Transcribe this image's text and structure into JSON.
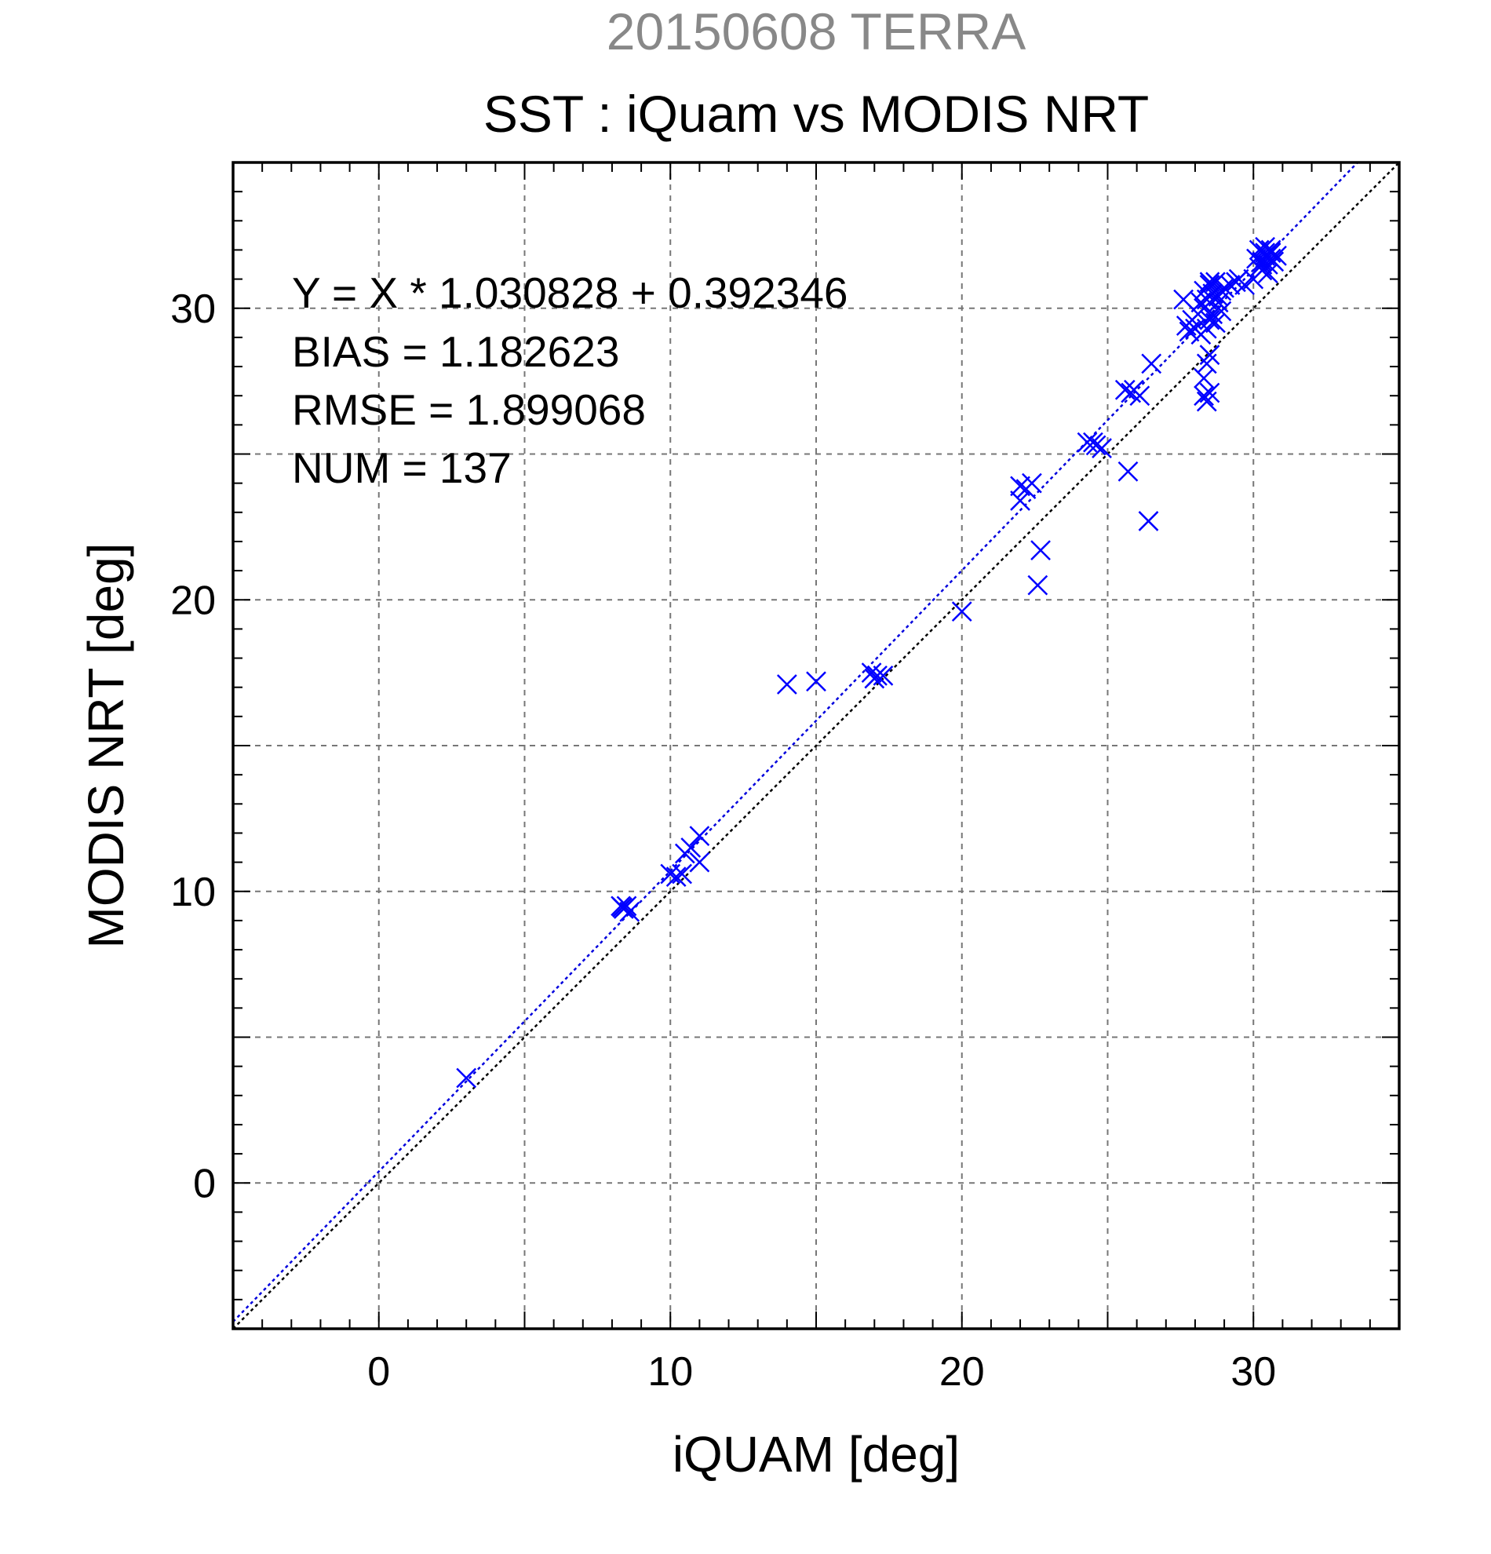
{
  "chart_data": {
    "type": "scatter",
    "title": "SST : iQuam vs MODIS NRT",
    "subtitle": "20150608 TERRA",
    "xlabel": "iQUAM [deg]",
    "ylabel": "MODIS NRT [deg]",
    "xlim": [
      -5,
      35
    ],
    "ylim": [
      -5,
      35
    ],
    "xticks": [
      0,
      10,
      20,
      30
    ],
    "yticks": [
      0,
      10,
      20,
      30
    ],
    "grid": true,
    "annotations": [
      "Y = X * 1.030828 + 0.392346",
      "BIAS = 1.182623",
      "RMSE = 1.899068",
      "NUM = 137"
    ],
    "fit_line": {
      "slope": 1.030828,
      "intercept": 0.392346,
      "color": "#0000dd"
    },
    "identity_line": {
      "slope": 1,
      "intercept": 0,
      "color": "#000000"
    },
    "marker_color": "#0000ff",
    "points": [
      [
        3.0,
        3.6
      ],
      [
        8.3,
        9.5
      ],
      [
        8.4,
        9.4
      ],
      [
        8.5,
        9.5
      ],
      [
        8.6,
        9.3
      ],
      [
        8.35,
        9.45
      ],
      [
        10.0,
        10.6
      ],
      [
        10.2,
        10.5
      ],
      [
        10.4,
        10.6
      ],
      [
        10.5,
        11.3
      ],
      [
        10.7,
        11.5
      ],
      [
        11.0,
        11.9
      ],
      [
        11.0,
        11.0
      ],
      [
        14.0,
        17.1
      ],
      [
        15.0,
        17.2
      ],
      [
        16.9,
        17.5
      ],
      [
        17.1,
        17.4
      ],
      [
        17.3,
        17.4
      ],
      [
        17.0,
        17.3
      ],
      [
        20.0,
        19.6
      ],
      [
        22.0,
        23.4
      ],
      [
        22.0,
        23.9
      ],
      [
        22.2,
        23.8
      ],
      [
        22.4,
        24.0
      ],
      [
        22.6,
        20.5
      ],
      [
        22.7,
        21.7
      ],
      [
        24.3,
        25.4
      ],
      [
        24.6,
        25.3
      ],
      [
        24.8,
        25.2
      ],
      [
        24.5,
        25.4
      ],
      [
        25.6,
        27.2
      ],
      [
        25.8,
        27.1
      ],
      [
        25.9,
        27.2
      ],
      [
        26.1,
        27.0
      ],
      [
        25.7,
        24.4
      ],
      [
        26.4,
        22.7
      ],
      [
        26.5,
        28.1
      ],
      [
        27.6,
        30.3
      ],
      [
        27.7,
        29.4
      ],
      [
        27.8,
        29.2
      ],
      [
        27.9,
        29.6
      ],
      [
        28.0,
        29.3
      ],
      [
        28.1,
        29.8
      ],
      [
        28.2,
        30.2
      ],
      [
        28.2,
        29.1
      ],
      [
        28.3,
        30.6
      ],
      [
        28.4,
        30.3
      ],
      [
        28.5,
        30.8
      ],
      [
        28.6,
        30.5
      ],
      [
        28.3,
        30.0
      ],
      [
        28.5,
        29.6
      ],
      [
        28.7,
        30.9
      ],
      [
        28.8,
        30.2
      ],
      [
        28.9,
        30.6
      ],
      [
        28.4,
        29.3
      ],
      [
        28.6,
        29.8
      ],
      [
        28.8,
        30.4
      ],
      [
        28.5,
        30.9
      ],
      [
        28.3,
        27.0
      ],
      [
        28.4,
        26.8
      ],
      [
        28.5,
        27.1
      ],
      [
        28.3,
        27.6
      ],
      [
        28.4,
        28.1
      ],
      [
        28.5,
        28.4
      ],
      [
        28.7,
        29.5
      ],
      [
        28.9,
        29.9
      ],
      [
        29.0,
        30.7
      ],
      [
        29.2,
        30.8
      ],
      [
        29.4,
        30.9
      ],
      [
        29.5,
        31.0
      ],
      [
        29.7,
        30.8
      ],
      [
        30.0,
        31.0
      ],
      [
        30.2,
        31.4
      ],
      [
        30.3,
        31.6
      ],
      [
        30.4,
        31.8
      ],
      [
        30.5,
        31.5
      ],
      [
        30.6,
        31.9
      ],
      [
        30.2,
        32.0
      ],
      [
        30.4,
        32.1
      ],
      [
        30.6,
        31.7
      ],
      [
        30.8,
        31.8
      ],
      [
        30.3,
        31.3
      ],
      [
        30.5,
        31.2
      ],
      [
        30.7,
        31.6
      ],
      [
        30.1,
        31.7
      ],
      [
        30.4,
        31.9
      ],
      [
        30.6,
        32.0
      ],
      [
        30.3,
        31.5
      ],
      [
        30.5,
        31.8
      ]
    ]
  }
}
